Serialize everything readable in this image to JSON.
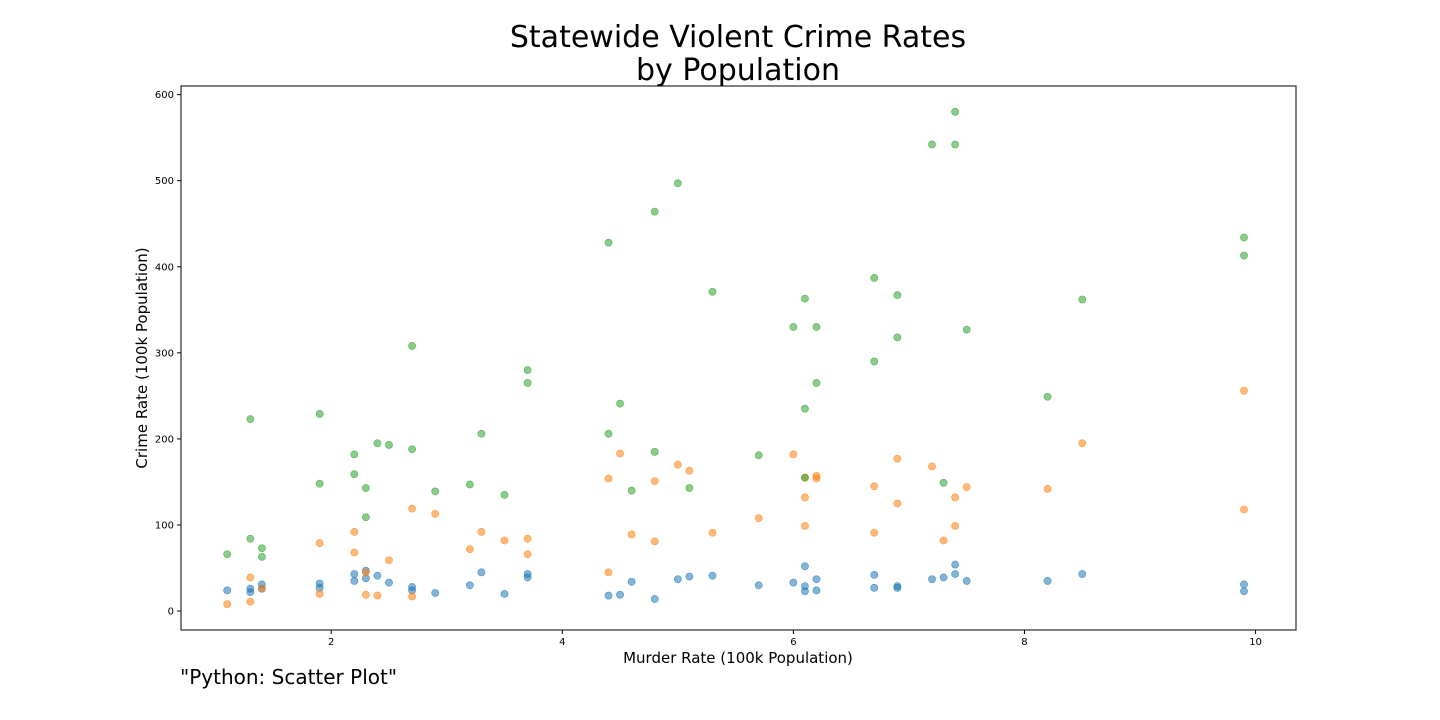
{
  "chart_data": {
    "type": "scatter",
    "title": "Statewide Violent Crime Rates",
    "subtitle": "by Population",
    "xlabel": "Murder Rate (100k Population)",
    "ylabel": "Crime Rate (100k Population)",
    "caption": "\"Python: Scatter Plot\"",
    "xlim": [
      0.7,
      10.35
    ],
    "ylim": [
      -22,
      610
    ],
    "xticks": [
      2,
      4,
      6,
      8,
      10
    ],
    "xtick_labels": [
      "2",
      "4",
      "6",
      "8",
      "10"
    ],
    "yticks": [
      0,
      100,
      200,
      300,
      400,
      500,
      600
    ],
    "ytick_labels": [
      "0",
      "100",
      "200",
      "300",
      "400",
      "500",
      "600"
    ],
    "grid": false,
    "legend": false,
    "series": [
      {
        "color": "#1f77b4",
        "points": [
          [
            1.1,
            24
          ],
          [
            1.3,
            26
          ],
          [
            1.3,
            22
          ],
          [
            1.4,
            31
          ],
          [
            1.4,
            26
          ],
          [
            1.9,
            27
          ],
          [
            1.9,
            32
          ],
          [
            2.2,
            43
          ],
          [
            2.2,
            35
          ],
          [
            2.3,
            38
          ],
          [
            2.3,
            47
          ],
          [
            2.4,
            41
          ],
          [
            2.5,
            33
          ],
          [
            2.7,
            28
          ],
          [
            2.7,
            24
          ],
          [
            2.9,
            21
          ],
          [
            3.2,
            30
          ],
          [
            3.3,
            45
          ],
          [
            3.5,
            20
          ],
          [
            3.7,
            39
          ],
          [
            3.7,
            43
          ],
          [
            4.4,
            18
          ],
          [
            4.5,
            19
          ],
          [
            4.6,
            34
          ],
          [
            4.8,
            14
          ],
          [
            5.0,
            37
          ],
          [
            5.1,
            40
          ],
          [
            5.3,
            41
          ],
          [
            5.7,
            30
          ],
          [
            6.0,
            33
          ],
          [
            6.1,
            52
          ],
          [
            6.1,
            23
          ],
          [
            6.1,
            29
          ],
          [
            6.2,
            37
          ],
          [
            6.2,
            24
          ],
          [
            6.7,
            42
          ],
          [
            6.7,
            27
          ],
          [
            6.9,
            29
          ],
          [
            6.9,
            27
          ],
          [
            7.2,
            37
          ],
          [
            7.3,
            39
          ],
          [
            7.4,
            54
          ],
          [
            7.4,
            43
          ],
          [
            7.5,
            35
          ],
          [
            8.2,
            35
          ],
          [
            8.5,
            43
          ],
          [
            9.9,
            31
          ],
          [
            9.9,
            23
          ]
        ]
      },
      {
        "color": "#ff7f0e",
        "points": [
          [
            1.1,
            8
          ],
          [
            1.3,
            39
          ],
          [
            1.3,
            11
          ],
          [
            1.4,
            26
          ],
          [
            1.9,
            79
          ],
          [
            1.9,
            20
          ],
          [
            2.2,
            92
          ],
          [
            2.2,
            68
          ],
          [
            2.3,
            45
          ],
          [
            2.3,
            19
          ],
          [
            2.4,
            18
          ],
          [
            2.5,
            59
          ],
          [
            2.7,
            119
          ],
          [
            2.7,
            17
          ],
          [
            2.9,
            113
          ],
          [
            3.2,
            72
          ],
          [
            3.3,
            92
          ],
          [
            3.5,
            82
          ],
          [
            3.7,
            84
          ],
          [
            3.7,
            66
          ],
          [
            4.4,
            154
          ],
          [
            4.4,
            45
          ],
          [
            4.5,
            183
          ],
          [
            4.6,
            89
          ],
          [
            4.8,
            151
          ],
          [
            4.8,
            81
          ],
          [
            5.0,
            170
          ],
          [
            5.1,
            163
          ],
          [
            5.3,
            91
          ],
          [
            5.7,
            108
          ],
          [
            6.0,
            182
          ],
          [
            6.1,
            155
          ],
          [
            6.1,
            132
          ],
          [
            6.1,
            99
          ],
          [
            6.2,
            157
          ],
          [
            6.2,
            154
          ],
          [
            6.7,
            145
          ],
          [
            6.7,
            91
          ],
          [
            6.9,
            177
          ],
          [
            6.9,
            125
          ],
          [
            7.2,
            168
          ],
          [
            7.3,
            82
          ],
          [
            7.4,
            132
          ],
          [
            7.4,
            99
          ],
          [
            7.5,
            144
          ],
          [
            8.2,
            142
          ],
          [
            8.5,
            195
          ],
          [
            9.9,
            256
          ],
          [
            9.9,
            118
          ]
        ]
      },
      {
        "color": "#2ca02c",
        "points": [
          [
            1.1,
            66
          ],
          [
            1.3,
            223
          ],
          [
            1.3,
            84
          ],
          [
            1.4,
            73
          ],
          [
            1.4,
            63
          ],
          [
            1.9,
            229
          ],
          [
            1.9,
            148
          ],
          [
            2.2,
            182
          ],
          [
            2.2,
            159
          ],
          [
            2.3,
            143
          ],
          [
            2.3,
            109
          ],
          [
            2.4,
            195
          ],
          [
            2.5,
            193
          ],
          [
            2.7,
            308
          ],
          [
            2.7,
            188
          ],
          [
            2.9,
            139
          ],
          [
            3.2,
            147
          ],
          [
            3.3,
            206
          ],
          [
            3.5,
            135
          ],
          [
            3.7,
            280
          ],
          [
            3.7,
            265
          ],
          [
            4.4,
            428
          ],
          [
            4.4,
            206
          ],
          [
            4.5,
            241
          ],
          [
            4.6,
            140
          ],
          [
            4.8,
            464
          ],
          [
            4.8,
            185
          ],
          [
            5.0,
            497
          ],
          [
            5.1,
            143
          ],
          [
            5.3,
            371
          ],
          [
            5.7,
            181
          ],
          [
            6.0,
            330
          ],
          [
            6.1,
            363
          ],
          [
            6.1,
            235
          ],
          [
            6.1,
            155
          ],
          [
            6.2,
            330
          ],
          [
            6.2,
            265
          ],
          [
            6.7,
            387
          ],
          [
            6.7,
            290
          ],
          [
            6.9,
            367
          ],
          [
            6.9,
            318
          ],
          [
            7.2,
            542
          ],
          [
            7.3,
            149
          ],
          [
            7.4,
            580
          ],
          [
            7.4,
            542
          ],
          [
            7.5,
            327
          ],
          [
            8.2,
            249
          ],
          [
            8.5,
            362
          ],
          [
            9.9,
            434
          ],
          [
            9.9,
            413
          ]
        ]
      }
    ]
  }
}
